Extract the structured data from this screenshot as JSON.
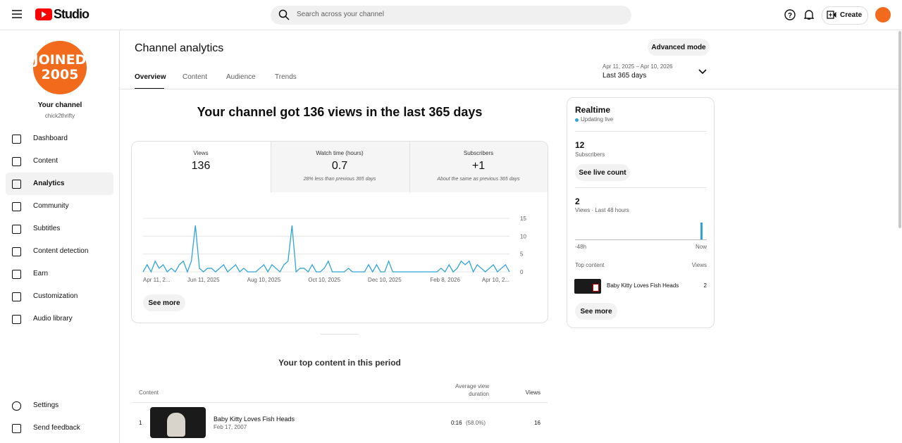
{
  "header": {
    "logo": "Studio",
    "search_placeholder": "Search across your channel",
    "create": "Create"
  },
  "sidebar": {
    "avatar_text": [
      "JOINED",
      "2005"
    ],
    "channel_label": "Your channel",
    "handle": "chick2thrifty",
    "nav": [
      "Dashboard",
      "Content",
      "Analytics",
      "Community",
      "Subtitles",
      "Content detection",
      "Earn",
      "Customization",
      "Audio library"
    ],
    "bottom": [
      "Settings",
      "Send feedback"
    ]
  },
  "main": {
    "title": "Channel analytics",
    "advanced": "Advanced mode",
    "tabs": [
      "Overview",
      "Content",
      "Audience",
      "Trends"
    ],
    "date_range": "Apr 11, 2025 – Apr 10, 2026",
    "period": "Last 365 days",
    "headline": "Your channel got 136 views in the last 365 days",
    "metrics": [
      {
        "label": "Views",
        "value": "136"
      },
      {
        "label": "Watch time (hours)",
        "value": "0.7",
        "note": "28% less than previous 365 days"
      },
      {
        "label": "Subscribers",
        "value": "+1",
        "note": "About the same as previous 365 days"
      }
    ],
    "see_more": "See more",
    "top_content": {
      "title": "Your top content in this period",
      "columns": [
        "Content",
        "Average view duration",
        "Views"
      ],
      "rows": [
        {
          "rank": "1",
          "title": "Baby Kitty Loves Fish Heads",
          "date": "Feb 17, 2007",
          "duration": "0:16",
          "percent": "(58.0%)",
          "views": "16"
        }
      ]
    }
  },
  "realtime": {
    "title": "Realtime",
    "status": "Updating live",
    "subscribers": "12",
    "subscribers_label": "Subscribers",
    "live_count": "See live count",
    "views": 2,
    "views_label": "Views · Last 48 hours",
    "axis": [
      "-48h",
      "Now"
    ],
    "top_label": "Top content",
    "views_col": "Views",
    "item_title": "Baby Kitty Loves Fish Heads",
    "item_views": "2",
    "see_more": "See more"
  },
  "chart_data": {
    "type": "line",
    "color": "#2fa4d7",
    "ylim": [
      0,
      15
    ],
    "yticks": [
      0,
      5,
      10,
      15
    ],
    "grid": true,
    "categories": [
      "Apr 11, 2...",
      null,
      null,
      null,
      null,
      null,
      null,
      null,
      null,
      null,
      null,
      null,
      null,
      null,
      null,
      "Jun 11, 2025",
      null,
      null,
      null,
      null,
      null,
      null,
      null,
      null,
      null,
      null,
      null,
      null,
      null,
      null,
      "Aug 10, 2025",
      null,
      null,
      null,
      null,
      null,
      null,
      null,
      null,
      null,
      null,
      null,
      null,
      null,
      null,
      "Oct 10, 2025",
      null,
      null,
      null,
      null,
      null,
      null,
      null,
      null,
      null,
      null,
      null,
      null,
      null,
      null,
      "Dec 10, 2025",
      null,
      null,
      null,
      null,
      null,
      null,
      null,
      null,
      null,
      null,
      null,
      null,
      null,
      null,
      "Feb 8, 2026",
      null,
      null,
      null,
      null,
      null,
      null,
      null,
      null,
      null,
      null,
      null,
      null,
      null,
      null,
      null,
      "Apr 10, 2..."
    ],
    "values": [
      0,
      2,
      0,
      3,
      1,
      2,
      0,
      1,
      0,
      2,
      3,
      0,
      3,
      13,
      1,
      0,
      1,
      1,
      0,
      1,
      2,
      0,
      1,
      2,
      0,
      1,
      0,
      0,
      0,
      1,
      2,
      0,
      2,
      1,
      0,
      2,
      3,
      13,
      0,
      1,
      1,
      0,
      2,
      0,
      0,
      1,
      3,
      0,
      0,
      0,
      0,
      1,
      0,
      0,
      0,
      0,
      2,
      0,
      2,
      0,
      0,
      3,
      0,
      0,
      0,
      0,
      0,
      0,
      0,
      0,
      0,
      0,
      0,
      0,
      1,
      0,
      2,
      0,
      1,
      3,
      2,
      3,
      0,
      2,
      1,
      0,
      1,
      2,
      0,
      1,
      2,
      0
    ]
  }
}
